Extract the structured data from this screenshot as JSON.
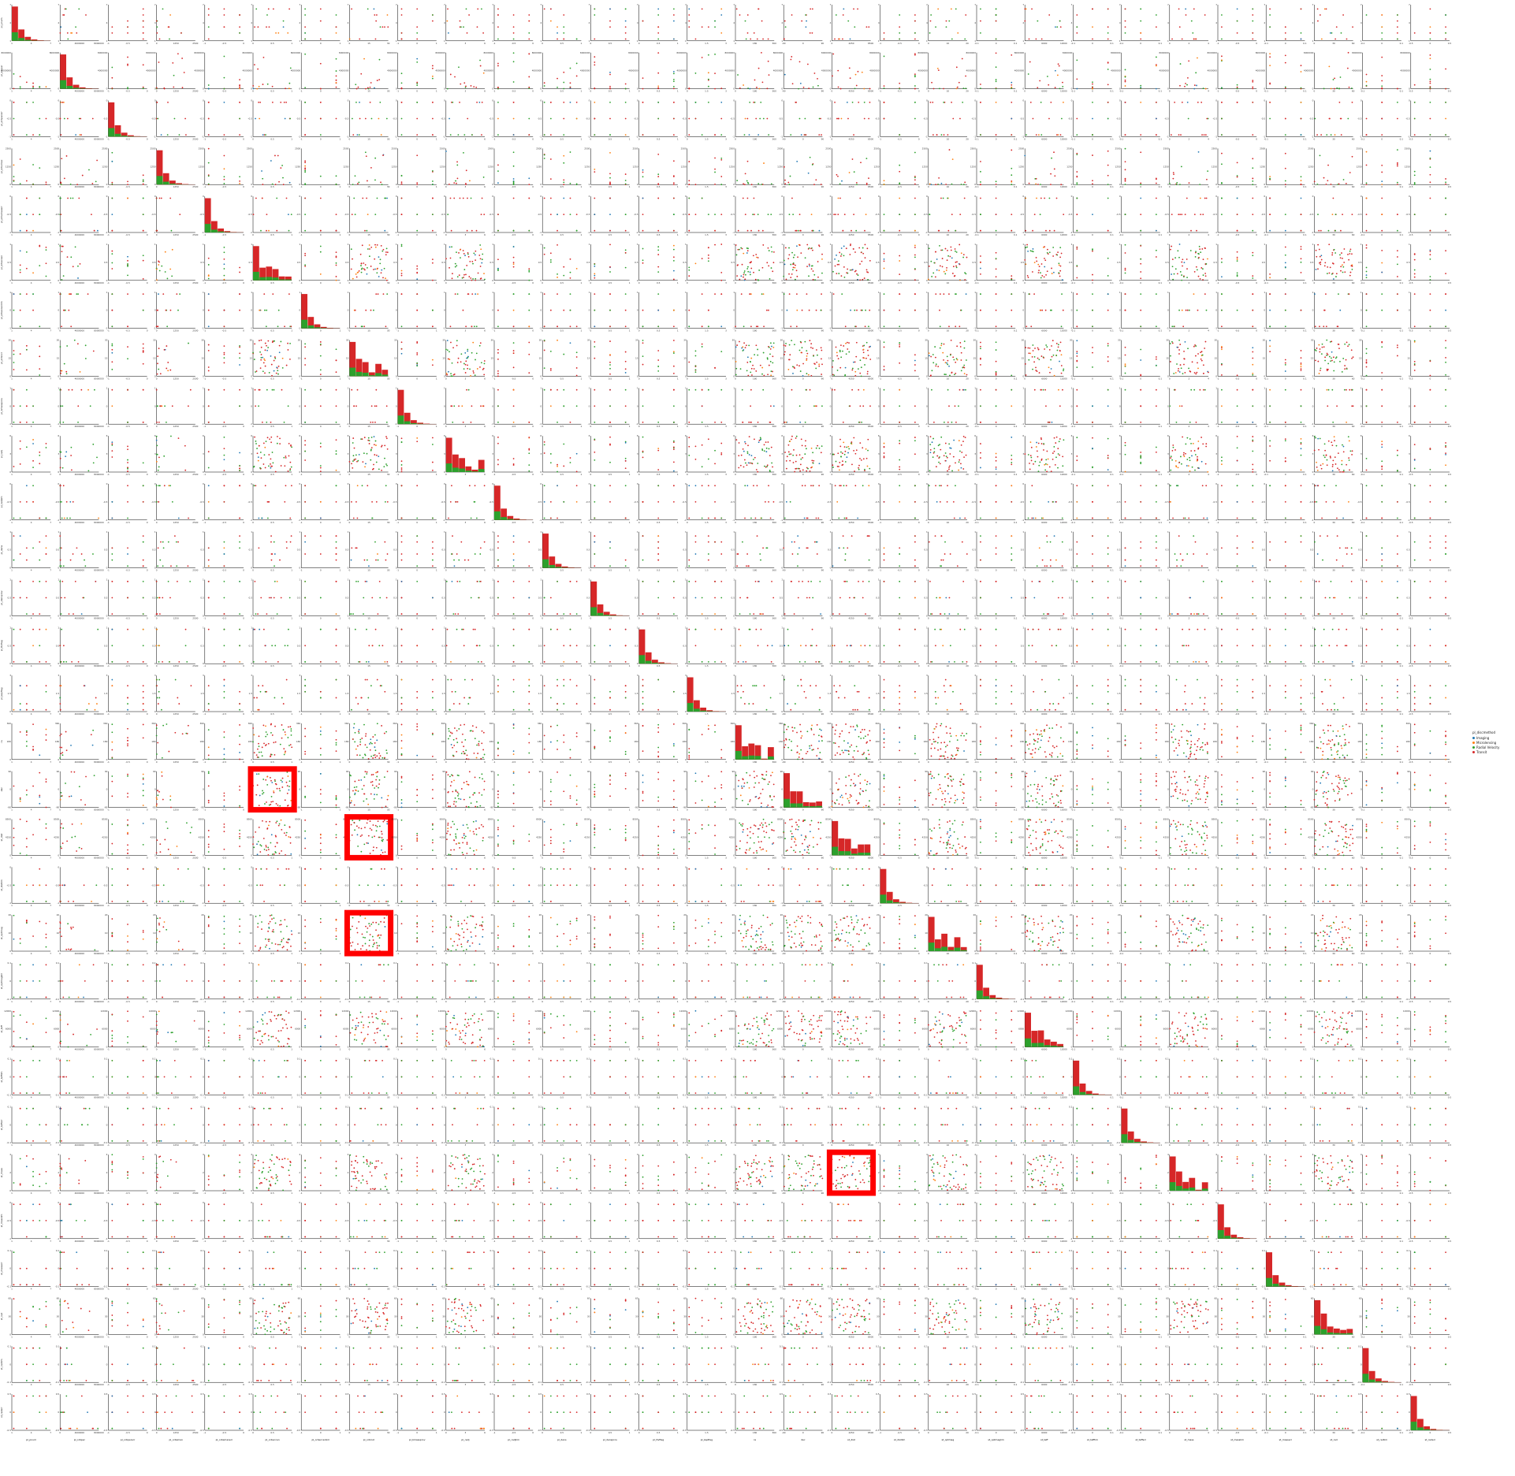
{
  "chart_data": {
    "type": "scatter",
    "title": "",
    "diag_kind": "hist",
    "variables": [
      "pl_pnum",
      "pl_orbper",
      "pl_orbpererr",
      "pl_orbsmax",
      "pl_orbsmaxerr",
      "pl_orbeccen",
      "pl_orbeccenlim",
      "pl_orbincl",
      "pl_bmassprov",
      "pl_radj",
      "pl_radjlim",
      "pl_dens",
      "pl_densprov",
      "pl_ttvflag",
      "pl_kepflag",
      "ra",
      "dec",
      "st_dist",
      "st_distlim",
      "st_optmag",
      "st_optmaglim",
      "st_teff",
      "st_tefflim",
      "st_tefferr",
      "st_mass",
      "st_masslim",
      "st_masserr",
      "st_rad",
      "st_radlim",
      "st_raderr"
    ],
    "hue": "pl_discmethod",
    "legend": {
      "title": "pl_discmethod",
      "placement": "right",
      "entries": [
        {
          "name": "Imaging",
          "color": "#1f77b4"
        },
        {
          "name": "Microlensing",
          "color": "#ff7f0e"
        },
        {
          "name": "Radial Velocity",
          "color": "#2ca02c"
        },
        {
          "name": "Transit",
          "color": "#d62728"
        }
      ]
    },
    "ranges": {
      "pl_pnum": [
        1,
        7
      ],
      "pl_orbper": [
        0,
        8000000
      ],
      "pl_orbpererr": [
        -1,
        0
      ],
      "pl_orbsmax": [
        0,
        2500
      ],
      "pl_orbsmaxerr": [
        -1,
        0
      ],
      "pl_orbeccen": [
        0,
        1
      ],
      "pl_orbeccenlim": [
        -1,
        1
      ],
      "pl_orbincl": [
        0,
        30
      ],
      "pl_bmassprov": [
        -1,
        1
      ],
      "pl_radj": [
        0,
        6
      ],
      "pl_radjlim": [
        -1,
        0
      ],
      "pl_dens": [
        0,
        1
      ],
      "pl_densprov": [
        0,
        1
      ],
      "pl_ttvflag": [
        0,
        1
      ],
      "pl_kepflag": [
        0,
        3
      ],
      "ra": [
        0,
        360
      ],
      "dec": [
        -90,
        90
      ],
      "st_dist": [
        0,
        8500
      ],
      "st_distlim": [
        -1,
        0
      ],
      "st_optmag": [
        0,
        20
      ],
      "st_optmaglim": [
        -0.1,
        0.1
      ],
      "st_teff": [
        0,
        12000
      ],
      "st_tefflim": [
        -0.1,
        0.1
      ],
      "st_tefferr": [
        -0.1,
        0.1
      ],
      "st_mass": [
        0,
        4
      ],
      "st_masslim": [
        -1,
        0
      ],
      "st_masserr": [
        -0.1,
        0.1
      ],
      "st_rad": [
        0,
        60
      ],
      "st_radlim": [
        -0.1,
        0.1
      ],
      "st_raderr": [
        -0.5,
        0.5
      ]
    },
    "highlighted_panels": [
      {
        "row": "dec",
        "column": "pl_orbeccen"
      },
      {
        "row": "st_dist",
        "column": "pl_orbincl"
      },
      {
        "row": "st_optmag",
        "column": "pl_orbincl"
      },
      {
        "row": "st_mass",
        "column": "st_dist"
      }
    ],
    "highlight_color": "#ff0000",
    "grid": false
  }
}
